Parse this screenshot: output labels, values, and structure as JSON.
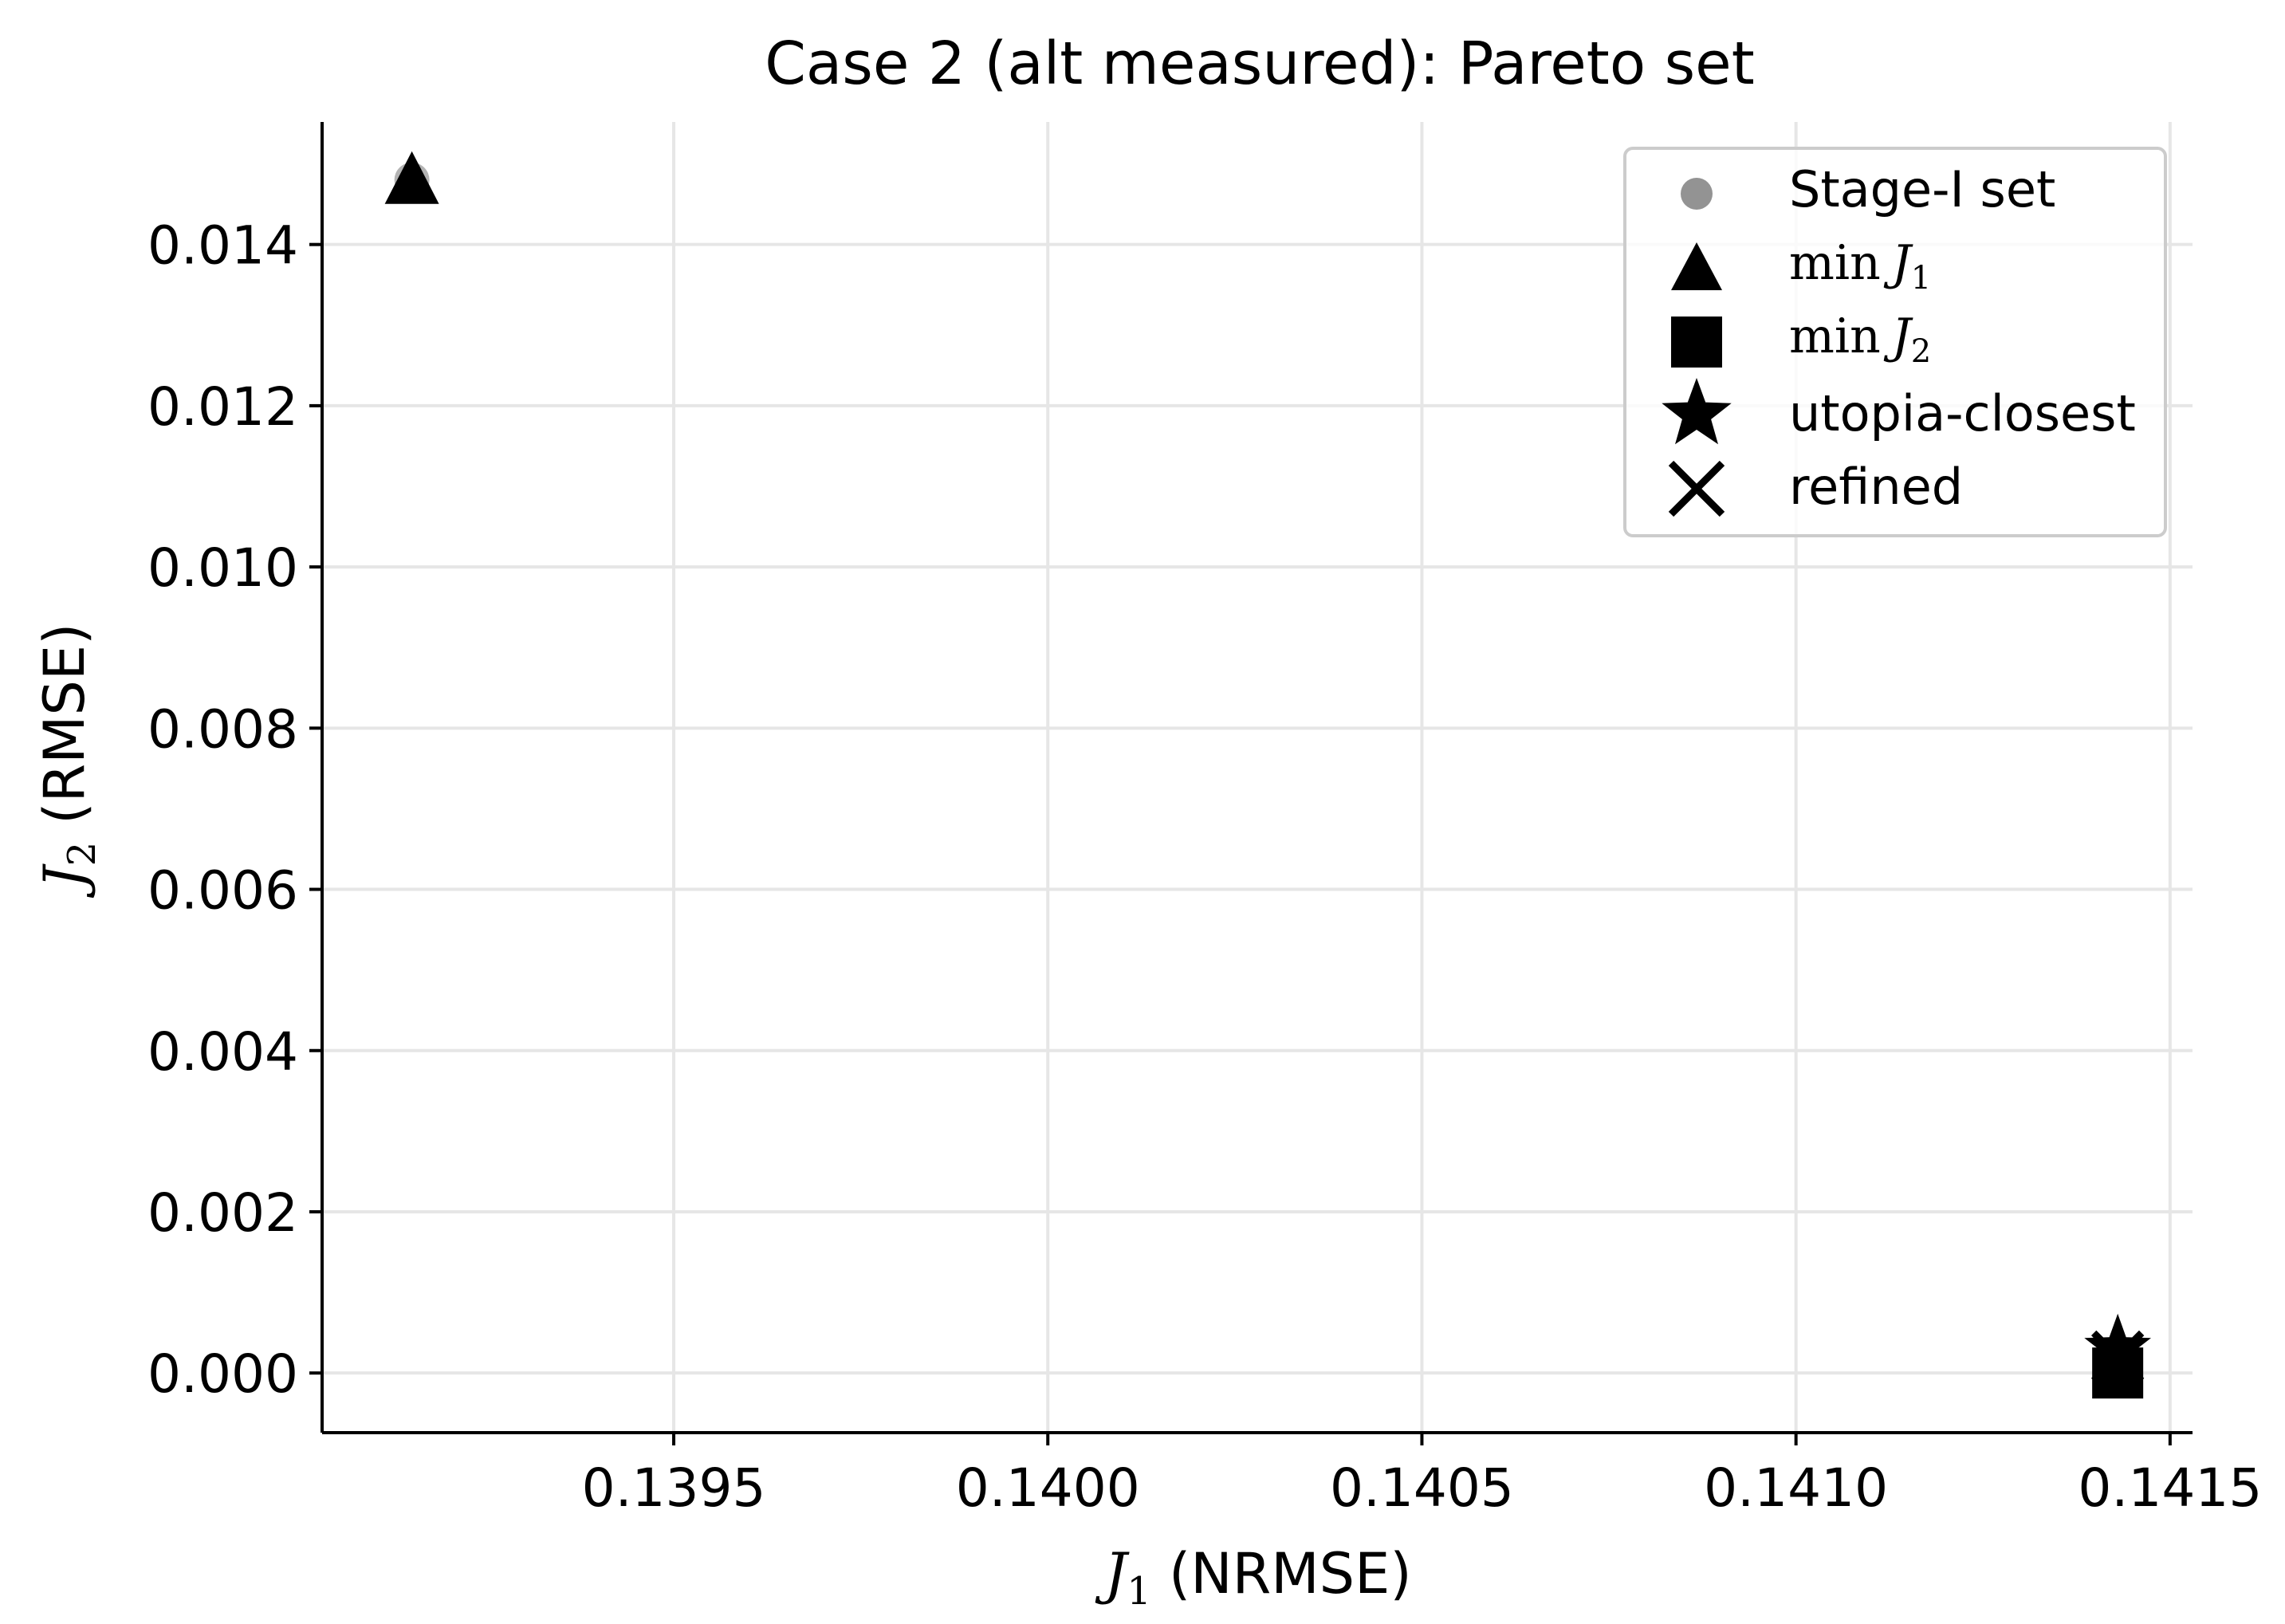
{
  "chart_data": {
    "type": "scatter",
    "title": "Case 2 (alt measured): Pareto set",
    "xlabel": {
      "symbol": "J",
      "sub": "1",
      "text": "(NRMSE)"
    },
    "ylabel": {
      "symbol": "J",
      "sub": "2",
      "text": "(RMSE)"
    },
    "xlim": [
      0.13903,
      0.14153
    ],
    "ylim": [
      -0.00074,
      0.01552
    ],
    "xticks": [
      "0.1395",
      "0.1400",
      "0.1405",
      "0.1410",
      "0.1415"
    ],
    "xtick_values": [
      0.1395,
      0.14,
      0.1405,
      0.141,
      0.1415
    ],
    "yticks": [
      "0.000",
      "0.002",
      "0.004",
      "0.006",
      "0.008",
      "0.010",
      "0.012",
      "0.014"
    ],
    "ytick_values": [
      0.0,
      0.002,
      0.004,
      0.006,
      0.008,
      0.01,
      0.012,
      0.014
    ],
    "grid": true,
    "legend_position": "top-right",
    "series": [
      {
        "name": "Stage-I set",
        "marker": "circle",
        "color": "#808080",
        "points": [
          [
            0.13915,
            0.0148
          ],
          [
            0.14143,
            0.0001
          ]
        ]
      },
      {
        "name": "min J1",
        "legend": {
          "pre": "min",
          "symbol": "J",
          "sub": "1"
        },
        "marker": "triangle",
        "color": "#000000",
        "points": [
          [
            0.13915,
            0.0148
          ]
        ]
      },
      {
        "name": "min J2",
        "legend": {
          "pre": "min",
          "symbol": "J",
          "sub": "2"
        },
        "marker": "square",
        "color": "#000000",
        "points": [
          [
            0.14143,
            0.0
          ]
        ]
      },
      {
        "name": "utopia-closest",
        "marker": "star",
        "color": "#000000",
        "points": [
          [
            0.14143,
            0.0003
          ]
        ]
      },
      {
        "name": "refined",
        "marker": "x",
        "color": "#000000",
        "points": [
          [
            0.14143,
            0.0002
          ]
        ]
      }
    ]
  }
}
